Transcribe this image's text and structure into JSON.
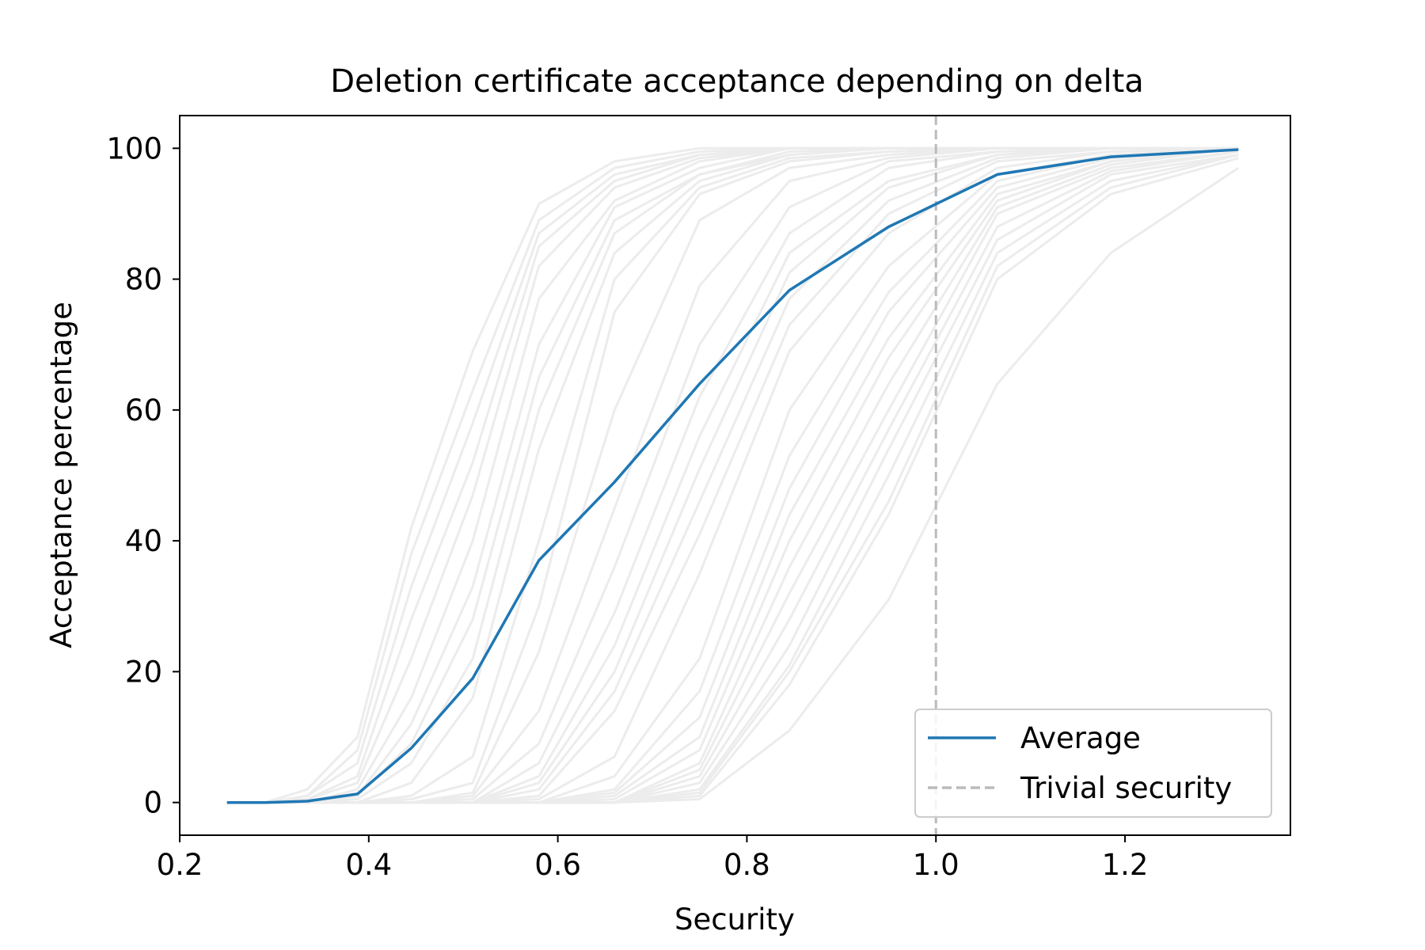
{
  "chart_data": {
    "type": "line",
    "title": "Deletion certificate acceptance depending on delta",
    "xlabel": "Security",
    "ylabel": "Acceptance percentage",
    "xlim": [
      0.2,
      1.375
    ],
    "ylim": [
      -5,
      105
    ],
    "xticks": [
      0.2,
      0.4,
      0.6,
      0.8,
      1.0,
      1.2
    ],
    "xtick_labels": [
      "0.2",
      "0.4",
      "0.6",
      "0.8",
      "1.0",
      "1.2"
    ],
    "yticks": [
      0,
      20,
      40,
      60,
      80,
      100
    ],
    "ytick_labels": [
      "0",
      "20",
      "40",
      "60",
      "80",
      "100"
    ],
    "x": [
      0.25,
      0.29,
      0.335,
      0.388,
      0.445,
      0.51,
      0.58,
      0.66,
      0.75,
      0.845,
      0.95,
      1.065,
      1.185,
      1.32
    ],
    "series": [
      {
        "name": "Average",
        "color": "#1f77b4",
        "style": "solid",
        "values": [
          0.0,
          0.0,
          0.2,
          1.3,
          8.3,
          19.0,
          37.0,
          49.0,
          64.0,
          78.3,
          88.0,
          96.0,
          98.7,
          99.8
        ]
      }
    ],
    "background_runs_color": "#ececec",
    "background_runs": [
      [
        0,
        0,
        2,
        10,
        42,
        69,
        91.5,
        98,
        100,
        100,
        100,
        100,
        100,
        100
      ],
      [
        0,
        0,
        1,
        8,
        38,
        63,
        89,
        97,
        99.5,
        100,
        100,
        100,
        100,
        100
      ],
      [
        0,
        0,
        1,
        6,
        33,
        58,
        87,
        96,
        99,
        100,
        100,
        100,
        100,
        100
      ],
      [
        0,
        0,
        0.5,
        4,
        28,
        52,
        85,
        95,
        99,
        100,
        100,
        100,
        100,
        100
      ],
      [
        0,
        0,
        0.5,
        3,
        22,
        47,
        82,
        94,
        98.5,
        100,
        100,
        100,
        100,
        100
      ],
      [
        0,
        0,
        0,
        2,
        16,
        40,
        77,
        92,
        98,
        100,
        100,
        100,
        100,
        100
      ],
      [
        0,
        0,
        0,
        1,
        12,
        33,
        70,
        91,
        97,
        100,
        100,
        100,
        100,
        100
      ],
      [
        0,
        0,
        0,
        1,
        9,
        28,
        65,
        89,
        96,
        99.5,
        100,
        100,
        100,
        100
      ],
      [
        0,
        0,
        0,
        0.5,
        6,
        22,
        60,
        87,
        96,
        99,
        100,
        100,
        100,
        100
      ],
      [
        0,
        0,
        0,
        0,
        3,
        16,
        54,
        84,
        95,
        99,
        100,
        100,
        100,
        100
      ],
      [
        0,
        0,
        0,
        0,
        1,
        7,
        40,
        80,
        94,
        98.5,
        99.5,
        100,
        100,
        100
      ],
      [
        0,
        0,
        0,
        0,
        0.5,
        3,
        30,
        75,
        93,
        98,
        99.5,
        100,
        100,
        100
      ],
      [
        0,
        0,
        0,
        0,
        0,
        1.5,
        23,
        60,
        89,
        97,
        99,
        100,
        100,
        100
      ],
      [
        0,
        0,
        0,
        0,
        0,
        1,
        14,
        45,
        79,
        95,
        98.5,
        100,
        100,
        100
      ],
      [
        0,
        0,
        0,
        0,
        0,
        0.5,
        9,
        36,
        70,
        91,
        98,
        99.5,
        100,
        100
      ],
      [
        0,
        0,
        0,
        0,
        0,
        0,
        6,
        29,
        62,
        87,
        97,
        99.5,
        100,
        100
      ],
      [
        0,
        0,
        0,
        0,
        0,
        0,
        4,
        24,
        56,
        84,
        95,
        99,
        100,
        100
      ],
      [
        0,
        0,
        0,
        0,
        0,
        0,
        3,
        20,
        51,
        81,
        94,
        99,
        100,
        100
      ],
      [
        0,
        0,
        0,
        0,
        0,
        0,
        2,
        17,
        46,
        77,
        92,
        98.5,
        100,
        100
      ],
      [
        0,
        0,
        0,
        0,
        0,
        0,
        1,
        14,
        41,
        73,
        90,
        98,
        99.5,
        100
      ],
      [
        0,
        0,
        0,
        0,
        0,
        0,
        0.5,
        7,
        35,
        69,
        87,
        97,
        99.5,
        100
      ],
      [
        0,
        0,
        0,
        0,
        0,
        0,
        0,
        4,
        22,
        60,
        82,
        96,
        99,
        100
      ],
      [
        0,
        0,
        0,
        0,
        0,
        0,
        0,
        2,
        17,
        53,
        78,
        95,
        99,
        100
      ],
      [
        0,
        0,
        0,
        0,
        0,
        0,
        0,
        1.5,
        13,
        48,
        75,
        94,
        98.5,
        100
      ],
      [
        0,
        0,
        0,
        0,
        0,
        0,
        0,
        1,
        10,
        44,
        71,
        93,
        98,
        100
      ],
      [
        0,
        0,
        0,
        0,
        0,
        0,
        0,
        0.5,
        8,
        40,
        68,
        92,
        98,
        100
      ],
      [
        0,
        0,
        0,
        0,
        0,
        0,
        0,
        0,
        6,
        36,
        64,
        91,
        97.5,
        100
      ],
      [
        0,
        0,
        0,
        0,
        0,
        0,
        0,
        0,
        5,
        32,
        60,
        90,
        97,
        99.5
      ],
      [
        0,
        0,
        0,
        0,
        0,
        0,
        0,
        0,
        4,
        28,
        57,
        88,
        96.5,
        99.5
      ],
      [
        0,
        0,
        0,
        0,
        0,
        0,
        0,
        0,
        3,
        24,
        54,
        86,
        96,
        99
      ],
      [
        0,
        0,
        0,
        0,
        0,
        0,
        0,
        0,
        2,
        21,
        50,
        84,
        95,
        99
      ],
      [
        0,
        0,
        0,
        0,
        0,
        0,
        0,
        0,
        1.5,
        20,
        46,
        82,
        94,
        99
      ],
      [
        0,
        0,
        0,
        0,
        0,
        0,
        0,
        0,
        1,
        18,
        44,
        80,
        93,
        98.5
      ],
      [
        0,
        0,
        0,
        0,
        0,
        0,
        0,
        0,
        0.5,
        11,
        31,
        64,
        84,
        97
      ]
    ],
    "reference_line": {
      "name": "Trivial security",
      "x": 1.0,
      "color": "#bbbbbb",
      "style": "dashed"
    },
    "legend": {
      "placement": "lower-right",
      "entries": [
        {
          "label": "Average",
          "color": "#1f77b4",
          "style": "solid"
        },
        {
          "label": "Trivial security",
          "color": "#bbbbbb",
          "style": "dashed"
        }
      ]
    },
    "grid": false
  }
}
